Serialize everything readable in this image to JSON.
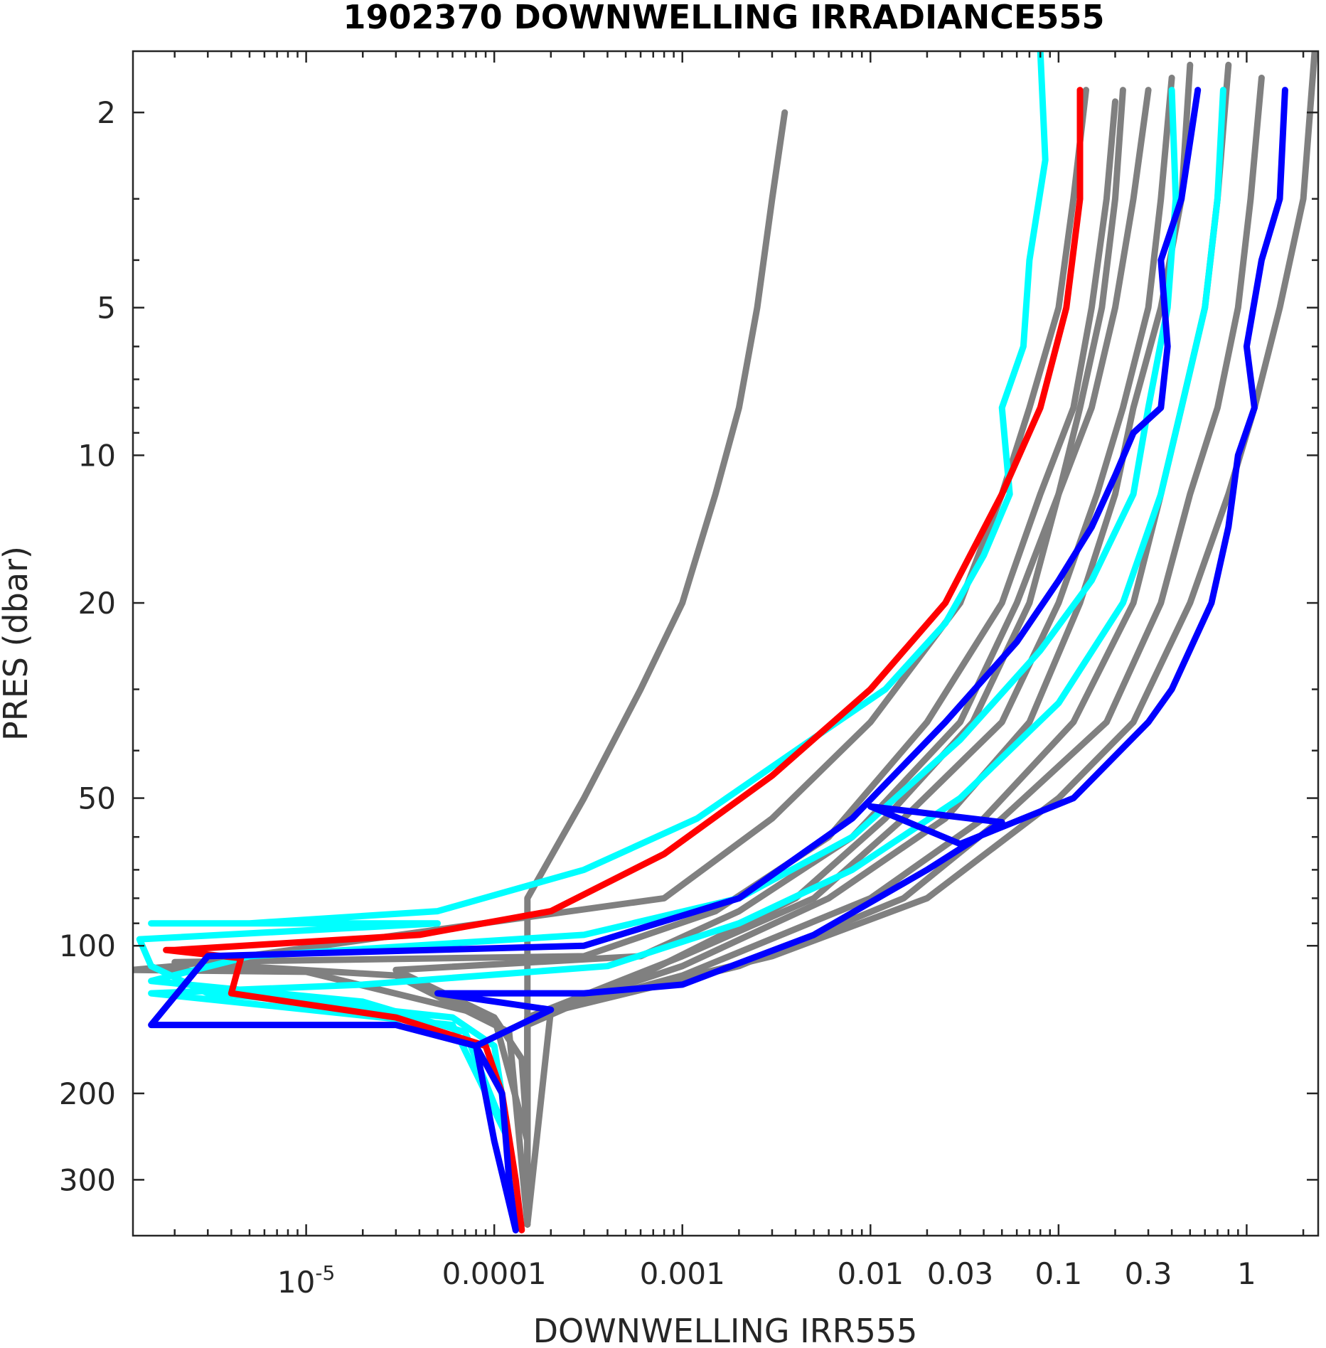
{
  "chart_data": {
    "type": "line",
    "title": "1902370  DOWNWELLING IRRADIANCE555",
    "xlabel": "DOWNWELLING IRR555",
    "ylabel": "PRES (dbar)",
    "xscale": "log",
    "yscale": "log",
    "yreversed": true,
    "xlim": [
      1.2e-06,
      2.4
    ],
    "ylim": [
      390,
      1.5
    ],
    "grid": false,
    "xticks": [
      {
        "value": 1e-05,
        "base": "10",
        "exp": "-5"
      },
      {
        "value": 0.0001,
        "label": "0.0001"
      },
      {
        "value": 0.001,
        "label": "0.001"
      },
      {
        "value": 0.01,
        "label": "0.01"
      },
      {
        "value": 0.03,
        "label": "0.03"
      },
      {
        "value": 0.1,
        "label": "0.1"
      },
      {
        "value": 0.3,
        "label": "0.3"
      },
      {
        "value": 1,
        "label": "1"
      }
    ],
    "yticks": [
      {
        "value": 2,
        "label": "2"
      },
      {
        "value": 5,
        "label": "5"
      },
      {
        "value": 10,
        "label": "10"
      },
      {
        "value": 20,
        "label": "20"
      },
      {
        "value": 50,
        "label": "50"
      },
      {
        "value": 100,
        "label": "100"
      },
      {
        "value": 200,
        "label": "200"
      },
      {
        "value": 300,
        "label": "300"
      }
    ],
    "colors": {
      "gray": "#808080",
      "cyan": "#00ffff",
      "blue": "#0000ff",
      "red": "#ff0000"
    },
    "series": [
      {
        "color": "gray",
        "points": [
          [
            0.0035,
            2.0
          ],
          [
            0.003,
            3
          ],
          [
            0.0025,
            5
          ],
          [
            0.002,
            8
          ],
          [
            0.0015,
            12
          ],
          [
            0.001,
            20
          ],
          [
            0.0006,
            30
          ],
          [
            0.0003,
            50
          ],
          [
            0.00015,
            80
          ],
          [
            0.00015,
            120
          ],
          [
            0.00015,
            160
          ],
          [
            0.00015,
            250
          ],
          [
            0.00015,
            370
          ]
        ]
      },
      {
        "color": "gray",
        "points": [
          [
            0.14,
            1.8
          ],
          [
            0.12,
            3
          ],
          [
            0.1,
            5
          ],
          [
            0.07,
            8
          ],
          [
            0.05,
            12
          ],
          [
            0.03,
            20
          ],
          [
            0.01,
            35
          ],
          [
            0.003,
            55
          ],
          [
            0.0008,
            80
          ],
          [
            2e-06,
            110
          ],
          [
            1.2e-06,
            112
          ],
          [
            1e-05,
            113
          ],
          [
            0.0001,
            140
          ],
          [
            0.00014,
            170
          ],
          [
            0.00015,
            250
          ],
          [
            0.00015,
            370
          ]
        ]
      },
      {
        "color": "gray",
        "points": [
          [
            0.3,
            1.8
          ],
          [
            0.25,
            3
          ],
          [
            0.2,
            5
          ],
          [
            0.15,
            8
          ],
          [
            0.1,
            12
          ],
          [
            0.06,
            20
          ],
          [
            0.03,
            35
          ],
          [
            0.008,
            60
          ],
          [
            0.002,
            85
          ],
          [
            0.0006,
            105
          ],
          [
            3e-05,
            112
          ],
          [
            0.0001,
            140
          ],
          [
            0.00015,
            250
          ],
          [
            0.00015,
            370
          ]
        ]
      },
      {
        "color": "gray",
        "points": [
          [
            0.5,
            1.6
          ],
          [
            0.45,
            3
          ],
          [
            0.35,
            5
          ],
          [
            0.25,
            8
          ],
          [
            0.2,
            12
          ],
          [
            0.13,
            20
          ],
          [
            0.07,
            35
          ],
          [
            0.025,
            55
          ],
          [
            0.006,
            80
          ],
          [
            0.001,
            110
          ],
          [
            0.00015,
            140
          ],
          [
            0.00015,
            250
          ],
          [
            0.00015,
            370
          ]
        ]
      },
      {
        "color": "gray",
        "points": [
          [
            0.8,
            1.6
          ],
          [
            0.7,
            3
          ],
          [
            0.6,
            5
          ],
          [
            0.45,
            8
          ],
          [
            0.35,
            12
          ],
          [
            0.25,
            20
          ],
          [
            0.12,
            35
          ],
          [
            0.04,
            55
          ],
          [
            0.01,
            80
          ],
          [
            0.001,
            115
          ],
          [
            0.00015,
            140
          ],
          [
            0.00015,
            370
          ]
        ]
      },
      {
        "color": "gray",
        "points": [
          [
            1.2,
            1.7
          ],
          [
            1.05,
            3
          ],
          [
            0.9,
            5
          ],
          [
            0.7,
            8
          ],
          [
            0.5,
            12
          ],
          [
            0.35,
            20
          ],
          [
            0.18,
            35
          ],
          [
            0.05,
            55
          ],
          [
            0.015,
            80
          ],
          [
            0.002,
            110
          ],
          [
            0.00015,
            140
          ],
          [
            0.00015,
            370
          ]
        ]
      },
      {
        "color": "gray",
        "points": [
          [
            2.3,
            1.5
          ],
          [
            2.0,
            3
          ],
          [
            1.5,
            5
          ],
          [
            1.1,
            8
          ],
          [
            0.8,
            12
          ],
          [
            0.5,
            20
          ],
          [
            0.25,
            35
          ],
          [
            0.1,
            50
          ],
          [
            0.02,
            80
          ],
          [
            0.003,
            105
          ],
          [
            0.0002,
            135
          ],
          [
            0.00015,
            370
          ]
        ]
      },
      {
        "color": "gray",
        "points": [
          [
            0.2,
            1.9
          ],
          [
            0.18,
            3
          ],
          [
            0.15,
            5
          ],
          [
            0.12,
            8
          ],
          [
            0.08,
            12
          ],
          [
            0.05,
            20
          ],
          [
            0.02,
            35
          ],
          [
            0.006,
            60
          ],
          [
            0.0015,
            85
          ],
          [
            0.0003,
            105
          ],
          [
            2e-06,
            108
          ],
          [
            3e-05,
            115
          ],
          [
            0.00012,
            150
          ],
          [
            0.00015,
            370
          ]
        ]
      },
      {
        "color": "gray",
        "points": [
          [
            0.22,
            1.8
          ],
          [
            0.2,
            3
          ],
          [
            0.17,
            5
          ],
          [
            0.13,
            8
          ],
          [
            0.1,
            12
          ],
          [
            0.07,
            20
          ],
          [
            0.035,
            35
          ],
          [
            0.012,
            55
          ],
          [
            0.004,
            80
          ],
          [
            0.0006,
            115
          ],
          [
            0.00015,
            145
          ],
          [
            0.00015,
            370
          ]
        ]
      },
      {
        "color": "gray",
        "points": [
          [
            0.4,
            1.7
          ],
          [
            0.35,
            3
          ],
          [
            0.3,
            5
          ],
          [
            0.22,
            8
          ],
          [
            0.16,
            12
          ],
          [
            0.1,
            20
          ],
          [
            0.05,
            35
          ],
          [
            0.015,
            55
          ],
          [
            0.005,
            80
          ],
          [
            0.001,
            105
          ],
          [
            0.00015,
            140
          ],
          [
            0.00015,
            370
          ]
        ]
      },
      {
        "color": "cyan",
        "points": [
          [
            0.08,
            1.5
          ],
          [
            0.085,
            2.5
          ],
          [
            0.07,
            4
          ],
          [
            0.065,
            6
          ],
          [
            0.05,
            8
          ],
          [
            0.055,
            12
          ],
          [
            0.04,
            16
          ],
          [
            0.025,
            22
          ],
          [
            0.012,
            30
          ],
          [
            0.004,
            40
          ],
          [
            0.0012,
            55
          ],
          [
            0.0003,
            70
          ],
          [
            5e-05,
            85
          ],
          [
            5e-06,
            90
          ],
          [
            1.5e-06,
            90
          ],
          [
            5e-05,
            90
          ],
          [
            1.3e-06,
            97
          ],
          [
            1.5e-06,
            110
          ],
          [
            3e-06,
            125
          ],
          [
            1e-05,
            130
          ],
          [
            6e-05,
            140
          ],
          [
            0.0001,
            160
          ],
          [
            0.00012,
            250
          ],
          [
            0.00013,
            370
          ]
        ]
      },
      {
        "color": "cyan",
        "points": [
          [
            0.4,
            1.8
          ],
          [
            0.42,
            3
          ],
          [
            0.38,
            5
          ],
          [
            0.3,
            8
          ],
          [
            0.25,
            12
          ],
          [
            0.15,
            18
          ],
          [
            0.08,
            25
          ],
          [
            0.03,
            38
          ],
          [
            0.008,
            60
          ],
          [
            0.002,
            80
          ],
          [
            0.0003,
            95
          ],
          [
            5e-06,
            105
          ],
          [
            1.5e-06,
            118
          ],
          [
            2e-05,
            130
          ],
          [
            7e-05,
            150
          ],
          [
            0.00012,
            250
          ],
          [
            0.00013,
            370
          ]
        ]
      },
      {
        "color": "cyan",
        "points": [
          [
            0.75,
            1.8
          ],
          [
            0.7,
            3
          ],
          [
            0.6,
            5
          ],
          [
            0.45,
            8
          ],
          [
            0.35,
            12
          ],
          [
            0.22,
            20
          ],
          [
            0.1,
            32
          ],
          [
            0.03,
            50
          ],
          [
            0.008,
            70
          ],
          [
            0.002,
            90
          ],
          [
            0.0004,
            110
          ],
          [
            2e-05,
            120
          ],
          [
            1.5e-06,
            125
          ],
          [
            6e-05,
            145
          ],
          [
            0.00012,
            250
          ],
          [
            0.00013,
            370
          ]
        ]
      },
      {
        "color": "red",
        "points": [
          [
            0.13,
            1.8
          ],
          [
            0.13,
            3
          ],
          [
            0.11,
            5
          ],
          [
            0.08,
            8
          ],
          [
            0.05,
            12
          ],
          [
            0.025,
            20
          ],
          [
            0.01,
            30
          ],
          [
            0.003,
            45
          ],
          [
            0.0008,
            65
          ],
          [
            0.0002,
            85
          ],
          [
            4e-05,
            95
          ],
          [
            2e-06,
            102
          ],
          [
            1.8e-06,
            102
          ],
          [
            4.5e-06,
            106
          ],
          [
            4e-06,
            125
          ],
          [
            3e-05,
            140
          ],
          [
            9e-05,
            160
          ],
          [
            0.00011,
            200
          ],
          [
            0.00013,
            300
          ],
          [
            0.00014,
            380
          ]
        ]
      },
      {
        "color": "blue",
        "points": [
          [
            0.55,
            1.8
          ],
          [
            0.45,
            3
          ],
          [
            0.35,
            4
          ],
          [
            0.38,
            6
          ],
          [
            0.35,
            8
          ],
          [
            0.25,
            9
          ],
          [
            0.2,
            11
          ],
          [
            0.15,
            14
          ],
          [
            0.1,
            18
          ],
          [
            0.06,
            24
          ],
          [
            0.025,
            35
          ],
          [
            0.008,
            55
          ],
          [
            0.002,
            80
          ],
          [
            0.0003,
            100
          ],
          [
            3e-06,
            105
          ],
          [
            1.5e-06,
            145
          ],
          [
            3e-05,
            145
          ],
          [
            8e-05,
            160
          ],
          [
            0.00011,
            200
          ],
          [
            0.00012,
            300
          ],
          [
            0.00013,
            380
          ]
        ]
      },
      {
        "color": "blue",
        "points": [
          [
            1.6,
            1.8
          ],
          [
            1.5,
            3
          ],
          [
            1.2,
            4
          ],
          [
            1.0,
            6
          ],
          [
            1.1,
            8
          ],
          [
            0.9,
            10
          ],
          [
            0.8,
            14
          ],
          [
            0.65,
            20
          ],
          [
            0.4,
            30
          ],
          [
            0.3,
            35
          ],
          [
            0.12,
            50
          ],
          [
            0.03,
            62
          ],
          [
            0.01,
            52
          ],
          [
            0.05,
            56
          ],
          [
            0.02,
            70
          ],
          [
            0.005,
            95
          ],
          [
            0.001,
            120
          ],
          [
            0.0003,
            125
          ],
          [
            5e-05,
            125
          ],
          [
            0.0002,
            135
          ],
          [
            8e-05,
            160
          ],
          [
            0.0001,
            250
          ],
          [
            0.00013,
            380
          ]
        ]
      }
    ]
  }
}
